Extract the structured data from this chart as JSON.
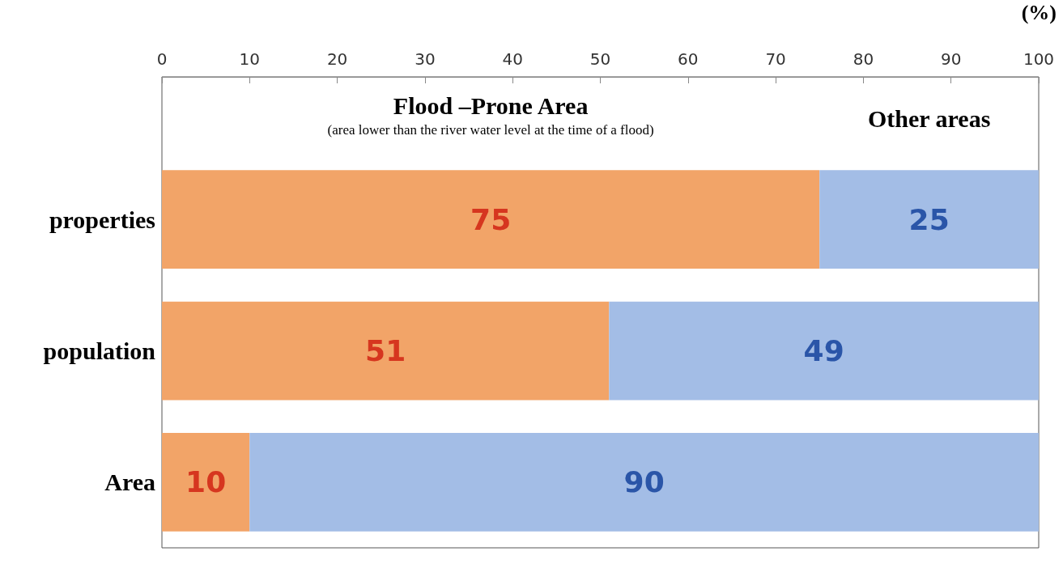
{
  "chart_data": {
    "type": "bar",
    "orientation": "horizontal",
    "stacked": true,
    "xlabel": "(%)",
    "categories": [
      "properties",
      "population",
      "Area"
    ],
    "series": [
      {
        "name": "Flood –Prone Area",
        "color": "#f2a468",
        "values": [
          75,
          51,
          10
        ]
      },
      {
        "name": "Other areas",
        "color": "#a3bde6",
        "values": [
          25,
          49,
          90
        ]
      }
    ],
    "annotations": [
      "(area lower than the river water level at the time of a flood)"
    ],
    "data_labels": true,
    "xlim": [
      0,
      100
    ],
    "xticks": [
      0,
      10,
      20,
      30,
      40,
      50,
      60,
      70,
      80,
      90,
      100
    ],
    "grid": false,
    "legend": false
  }
}
